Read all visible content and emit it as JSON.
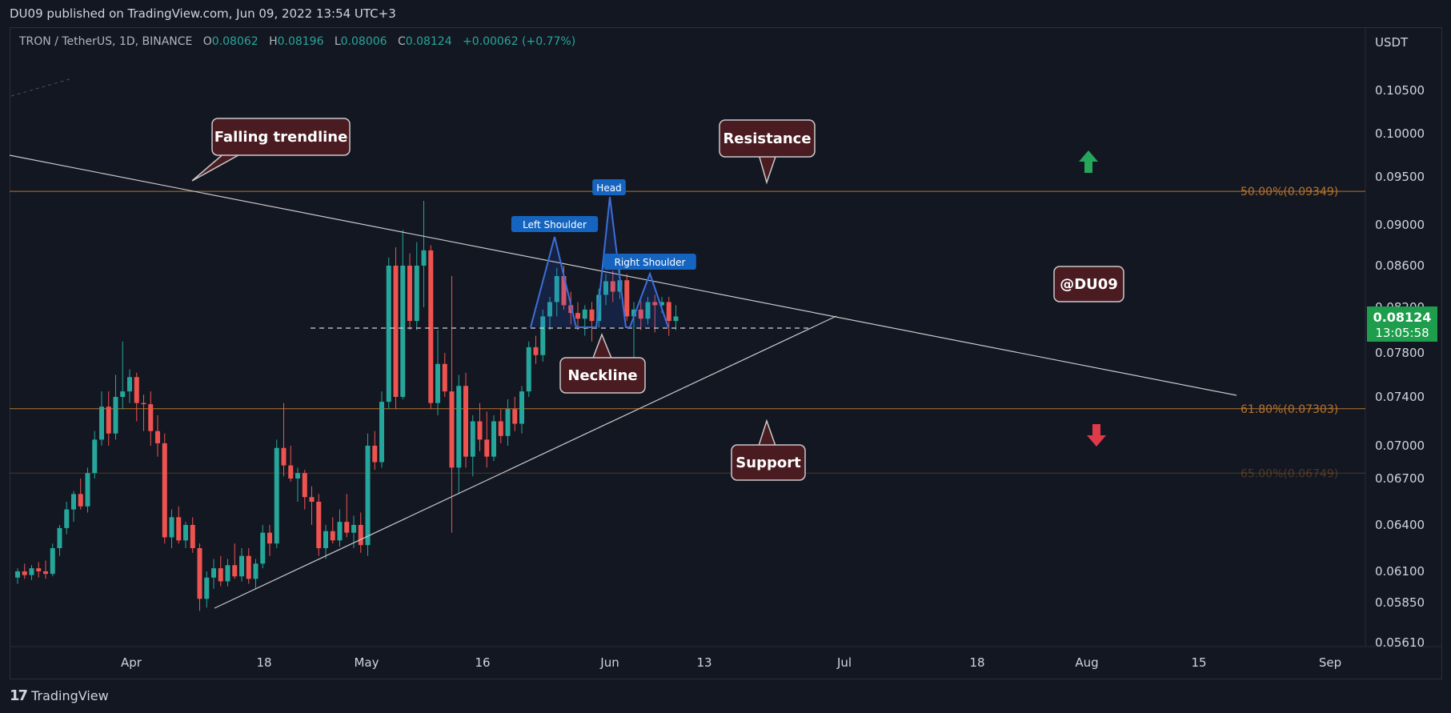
{
  "header": {
    "publish_text": "DU09 published on TradingView.com, Jun 09, 2022 13:54 UTC+3"
  },
  "legend": {
    "symbol": "TRON / TetherUS, 1D, BINANCE",
    "open_label": "O",
    "open": "0.08062",
    "high_label": "H",
    "high": "0.08196",
    "low_label": "L",
    "low": "0.08006",
    "close_label": "C",
    "close": "0.08124",
    "change": "+0.00062 (+0.77%)"
  },
  "footer": {
    "brand": "TradingView"
  },
  "colors": {
    "background": "#131722",
    "up": "#26a69a",
    "down": "#ef5350",
    "fib": "#b8742a",
    "trendline": "#c8c8c8",
    "pattern": "#2962ff",
    "callout_bg": "#4a1c22",
    "price_badge": "#1e9e4d"
  },
  "chart_data": {
    "type": "candlestick",
    "currency_label": "USDT",
    "y_ticks": [
      "0.10500",
      "0.10000",
      "0.09500",
      "0.09000",
      "0.08600",
      "0.08200",
      "0.07800",
      "0.07400",
      "0.07000",
      "0.06700",
      "0.06400",
      "0.06100",
      "0.05850",
      "0.05610"
    ],
    "x_ticks": [
      "Apr",
      "18",
      "May",
      "16",
      "Jun",
      "13",
      "Jul",
      "18",
      "Aug",
      "15",
      "Sep"
    ],
    "current_price": "0.08124",
    "countdown": "13:05:58",
    "fib_levels": [
      {
        "label": "50.00%(0.09349)",
        "value": 0.09349
      },
      {
        "label": "61.80%(0.07303)",
        "value": 0.07303
      },
      {
        "label": "65.00%(0.06749)",
        "value": 0.06749
      }
    ],
    "annotations": {
      "falling_trendline": "Falling trendline",
      "resistance": "Resistance",
      "support": "Support",
      "neckline": "Neckline",
      "author": "@DU09",
      "left_shoulder": "Left Shoulder",
      "head": "Head",
      "right_shoulder": "Right Shoulder"
    },
    "candles": [
      {
        "o": 0.0605,
        "h": 0.0612,
        "l": 0.06,
        "c": 0.061
      },
      {
        "o": 0.061,
        "h": 0.0615,
        "l": 0.0604,
        "c": 0.0607
      },
      {
        "o": 0.0607,
        "h": 0.0614,
        "l": 0.0603,
        "c": 0.0612
      },
      {
        "o": 0.0612,
        "h": 0.0616,
        "l": 0.0605,
        "c": 0.061
      },
      {
        "o": 0.061,
        "h": 0.0617,
        "l": 0.0604,
        "c": 0.0608
      },
      {
        "o": 0.0608,
        "h": 0.0628,
        "l": 0.0606,
        "c": 0.0625
      },
      {
        "o": 0.0625,
        "h": 0.064,
        "l": 0.062,
        "c": 0.0638
      },
      {
        "o": 0.0638,
        "h": 0.0655,
        "l": 0.0634,
        "c": 0.065
      },
      {
        "o": 0.065,
        "h": 0.0662,
        "l": 0.0642,
        "c": 0.066
      },
      {
        "o": 0.066,
        "h": 0.067,
        "l": 0.065,
        "c": 0.0652
      },
      {
        "o": 0.0652,
        "h": 0.068,
        "l": 0.0648,
        "c": 0.0675
      },
      {
        "o": 0.0675,
        "h": 0.0712,
        "l": 0.067,
        "c": 0.0705
      },
      {
        "o": 0.0705,
        "h": 0.0745,
        "l": 0.07,
        "c": 0.0732
      },
      {
        "o": 0.0732,
        "h": 0.0745,
        "l": 0.07,
        "c": 0.071
      },
      {
        "o": 0.071,
        "h": 0.076,
        "l": 0.0705,
        "c": 0.074
      },
      {
        "o": 0.074,
        "h": 0.079,
        "l": 0.073,
        "c": 0.0745
      },
      {
        "o": 0.0745,
        "h": 0.0765,
        "l": 0.0735,
        "c": 0.0758
      },
      {
        "o": 0.0758,
        "h": 0.0762,
        "l": 0.072,
        "c": 0.0735
      },
      {
        "o": 0.0735,
        "h": 0.0742,
        "l": 0.0712,
        "c": 0.0734
      },
      {
        "o": 0.0734,
        "h": 0.0745,
        "l": 0.07,
        "c": 0.0712
      },
      {
        "o": 0.0712,
        "h": 0.0725,
        "l": 0.069,
        "c": 0.0702
      },
      {
        "o": 0.0702,
        "h": 0.071,
        "l": 0.0628,
        "c": 0.0632
      },
      {
        "o": 0.0632,
        "h": 0.065,
        "l": 0.0625,
        "c": 0.0645
      },
      {
        "o": 0.0645,
        "h": 0.0652,
        "l": 0.0628,
        "c": 0.063
      },
      {
        "o": 0.063,
        "h": 0.0642,
        "l": 0.0625,
        "c": 0.064
      },
      {
        "o": 0.064,
        "h": 0.0645,
        "l": 0.0622,
        "c": 0.0625
      },
      {
        "o": 0.0625,
        "h": 0.0628,
        "l": 0.058,
        "c": 0.0588
      },
      {
        "o": 0.0588,
        "h": 0.061,
        "l": 0.0582,
        "c": 0.0605
      },
      {
        "o": 0.0605,
        "h": 0.0618,
        "l": 0.0596,
        "c": 0.0612
      },
      {
        "o": 0.0612,
        "h": 0.062,
        "l": 0.0598,
        "c": 0.0602
      },
      {
        "o": 0.0602,
        "h": 0.0618,
        "l": 0.0598,
        "c": 0.0614
      },
      {
        "o": 0.0614,
        "h": 0.0628,
        "l": 0.0604,
        "c": 0.0606
      },
      {
        "o": 0.0606,
        "h": 0.0625,
        "l": 0.0602,
        "c": 0.062
      },
      {
        "o": 0.062,
        "h": 0.0625,
        "l": 0.06,
        "c": 0.0604
      },
      {
        "o": 0.0604,
        "h": 0.0618,
        "l": 0.0596,
        "c": 0.0615
      },
      {
        "o": 0.0615,
        "h": 0.064,
        "l": 0.0612,
        "c": 0.0635
      },
      {
        "o": 0.0635,
        "h": 0.064,
        "l": 0.062,
        "c": 0.0628
      },
      {
        "o": 0.0628,
        "h": 0.0705,
        "l": 0.0625,
        "c": 0.0698
      },
      {
        "o": 0.0698,
        "h": 0.0735,
        "l": 0.0672,
        "c": 0.0682
      },
      {
        "o": 0.0682,
        "h": 0.07,
        "l": 0.0668,
        "c": 0.067
      },
      {
        "o": 0.067,
        "h": 0.068,
        "l": 0.0655,
        "c": 0.0675
      },
      {
        "o": 0.0675,
        "h": 0.0678,
        "l": 0.065,
        "c": 0.0658
      },
      {
        "o": 0.0658,
        "h": 0.0665,
        "l": 0.064,
        "c": 0.0655
      },
      {
        "o": 0.0655,
        "h": 0.066,
        "l": 0.062,
        "c": 0.0625
      },
      {
        "o": 0.0625,
        "h": 0.064,
        "l": 0.0618,
        "c": 0.0636
      },
      {
        "o": 0.0636,
        "h": 0.0645,
        "l": 0.0628,
        "c": 0.063
      },
      {
        "o": 0.063,
        "h": 0.065,
        "l": 0.0626,
        "c": 0.0642
      },
      {
        "o": 0.0642,
        "h": 0.066,
        "l": 0.0632,
        "c": 0.0635
      },
      {
        "o": 0.0635,
        "h": 0.0646,
        "l": 0.0625,
        "c": 0.064
      },
      {
        "o": 0.064,
        "h": 0.0648,
        "l": 0.0622,
        "c": 0.0627
      },
      {
        "o": 0.0627,
        "h": 0.071,
        "l": 0.062,
        "c": 0.07
      },
      {
        "o": 0.07,
        "h": 0.0712,
        "l": 0.0678,
        "c": 0.0685
      },
      {
        "o": 0.0685,
        "h": 0.0745,
        "l": 0.068,
        "c": 0.0736
      },
      {
        "o": 0.0736,
        "h": 0.0868,
        "l": 0.073,
        "c": 0.086
      },
      {
        "o": 0.086,
        "h": 0.0878,
        "l": 0.073,
        "c": 0.074
      },
      {
        "o": 0.074,
        "h": 0.0895,
        "l": 0.0738,
        "c": 0.086
      },
      {
        "o": 0.086,
        "h": 0.0872,
        "l": 0.08,
        "c": 0.0808
      },
      {
        "o": 0.0808,
        "h": 0.0883,
        "l": 0.08,
        "c": 0.086
      },
      {
        "o": 0.086,
        "h": 0.0925,
        "l": 0.082,
        "c": 0.0875
      },
      {
        "o": 0.0875,
        "h": 0.088,
        "l": 0.073,
        "c": 0.0735
      },
      {
        "o": 0.0735,
        "h": 0.08,
        "l": 0.0725,
        "c": 0.077
      },
      {
        "o": 0.077,
        "h": 0.078,
        "l": 0.074,
        "c": 0.0745
      },
      {
        "o": 0.0745,
        "h": 0.085,
        "l": 0.0635,
        "c": 0.068
      },
      {
        "o": 0.068,
        "h": 0.076,
        "l": 0.066,
        "c": 0.075
      },
      {
        "o": 0.075,
        "h": 0.0762,
        "l": 0.068,
        "c": 0.069
      },
      {
        "o": 0.069,
        "h": 0.0725,
        "l": 0.0672,
        "c": 0.072
      },
      {
        "o": 0.072,
        "h": 0.0735,
        "l": 0.0695,
        "c": 0.0705
      },
      {
        "o": 0.0705,
        "h": 0.0728,
        "l": 0.068,
        "c": 0.069
      },
      {
        "o": 0.069,
        "h": 0.0725,
        "l": 0.0686,
        "c": 0.072
      },
      {
        "o": 0.072,
        "h": 0.073,
        "l": 0.0702,
        "c": 0.0708
      },
      {
        "o": 0.0708,
        "h": 0.0738,
        "l": 0.07,
        "c": 0.073
      },
      {
        "o": 0.073,
        "h": 0.074,
        "l": 0.0712,
        "c": 0.0718
      },
      {
        "o": 0.0718,
        "h": 0.075,
        "l": 0.071,
        "c": 0.0745
      },
      {
        "o": 0.0745,
        "h": 0.079,
        "l": 0.074,
        "c": 0.0785
      },
      {
        "o": 0.0785,
        "h": 0.0795,
        "l": 0.077,
        "c": 0.0778
      },
      {
        "o": 0.0778,
        "h": 0.0818,
        "l": 0.0772,
        "c": 0.0812
      },
      {
        "o": 0.0812,
        "h": 0.083,
        "l": 0.08,
        "c": 0.0825
      },
      {
        "o": 0.0825,
        "h": 0.0858,
        "l": 0.0812,
        "c": 0.085
      },
      {
        "o": 0.085,
        "h": 0.086,
        "l": 0.0818,
        "c": 0.0822
      },
      {
        "o": 0.0822,
        "h": 0.0835,
        "l": 0.0805,
        "c": 0.0815
      },
      {
        "o": 0.0815,
        "h": 0.0825,
        "l": 0.08,
        "c": 0.081
      },
      {
        "o": 0.081,
        "h": 0.0822,
        "l": 0.0795,
        "c": 0.0818
      },
      {
        "o": 0.0818,
        "h": 0.0825,
        "l": 0.079,
        "c": 0.0808
      },
      {
        "o": 0.0808,
        "h": 0.0838,
        "l": 0.0802,
        "c": 0.0832
      },
      {
        "o": 0.0832,
        "h": 0.0852,
        "l": 0.0822,
        "c": 0.0845
      },
      {
        "o": 0.0845,
        "h": 0.0855,
        "l": 0.0825,
        "c": 0.0835
      },
      {
        "o": 0.0835,
        "h": 0.087,
        "l": 0.0828,
        "c": 0.0846
      },
      {
        "o": 0.0846,
        "h": 0.0852,
        "l": 0.0808,
        "c": 0.0812
      },
      {
        "o": 0.0812,
        "h": 0.0825,
        "l": 0.0775,
        "c": 0.0818
      },
      {
        "o": 0.0818,
        "h": 0.0826,
        "l": 0.08,
        "c": 0.081
      },
      {
        "o": 0.081,
        "h": 0.083,
        "l": 0.0805,
        "c": 0.0825
      },
      {
        "o": 0.0825,
        "h": 0.0832,
        "l": 0.0798,
        "c": 0.0822
      },
      {
        "o": 0.0822,
        "h": 0.083,
        "l": 0.0815,
        "c": 0.0825
      },
      {
        "o": 0.0825,
        "h": 0.083,
        "l": 0.0795,
        "c": 0.0808
      },
      {
        "o": 0.0808,
        "h": 0.0822,
        "l": 0.08,
        "c": 0.0812
      }
    ]
  }
}
